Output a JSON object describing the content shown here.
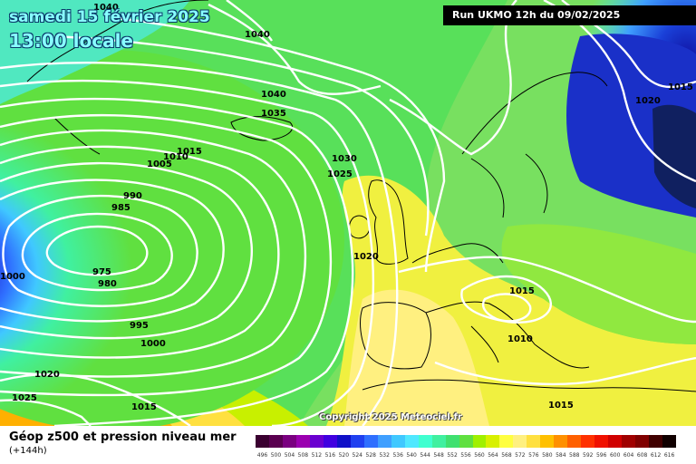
{
  "header": {
    "date": "samedi 15 février 2025",
    "time": "13:00 locale",
    "run": "Run UKMO 12h du 09/02/2025"
  },
  "map": {
    "copyright": "Copyright 2025 Meteociel.fr",
    "pressure_labels": [
      "1040",
      "1040",
      "1040",
      "1035",
      "1030",
      "1025",
      "1020",
      "1015",
      "1010",
      "1005",
      "1000",
      "995",
      "990",
      "985",
      "980",
      "975",
      "1000",
      "1020",
      "1025",
      "1015",
      "1015",
      "1010",
      "1015",
      "1020",
      "1015"
    ]
  },
  "legend": {
    "title": "Géop z500 et pression niveau mer",
    "subtitle": "(+144h)",
    "scale_labels": [
      "496",
      "500",
      "504",
      "508",
      "512",
      "516",
      "520",
      "524",
      "528",
      "532",
      "536",
      "540",
      "544",
      "548",
      "552",
      "556",
      "560",
      "564",
      "568",
      "572",
      "576",
      "580",
      "584",
      "588",
      "592",
      "596",
      "600",
      "604",
      "608",
      "612",
      "616"
    ],
    "scale_colors": [
      "#3a0030",
      "#5a0050",
      "#7a0080",
      "#9b00b0",
      "#6a00d0",
      "#4000e0",
      "#1010c8",
      "#2040f0",
      "#2f6fff",
      "#3f9fff",
      "#40c8ff",
      "#50e8ff",
      "#40ffd0",
      "#40f0a0",
      "#40e070",
      "#60e040",
      "#a0f000",
      "#d8f000",
      "#ffff40",
      "#fff080",
      "#ffe040",
      "#ffc000",
      "#ff9000",
      "#ff6000",
      "#ff3000",
      "#f01000",
      "#d00000",
      "#a00000",
      "#800000",
      "#400000",
      "#100000"
    ]
  }
}
